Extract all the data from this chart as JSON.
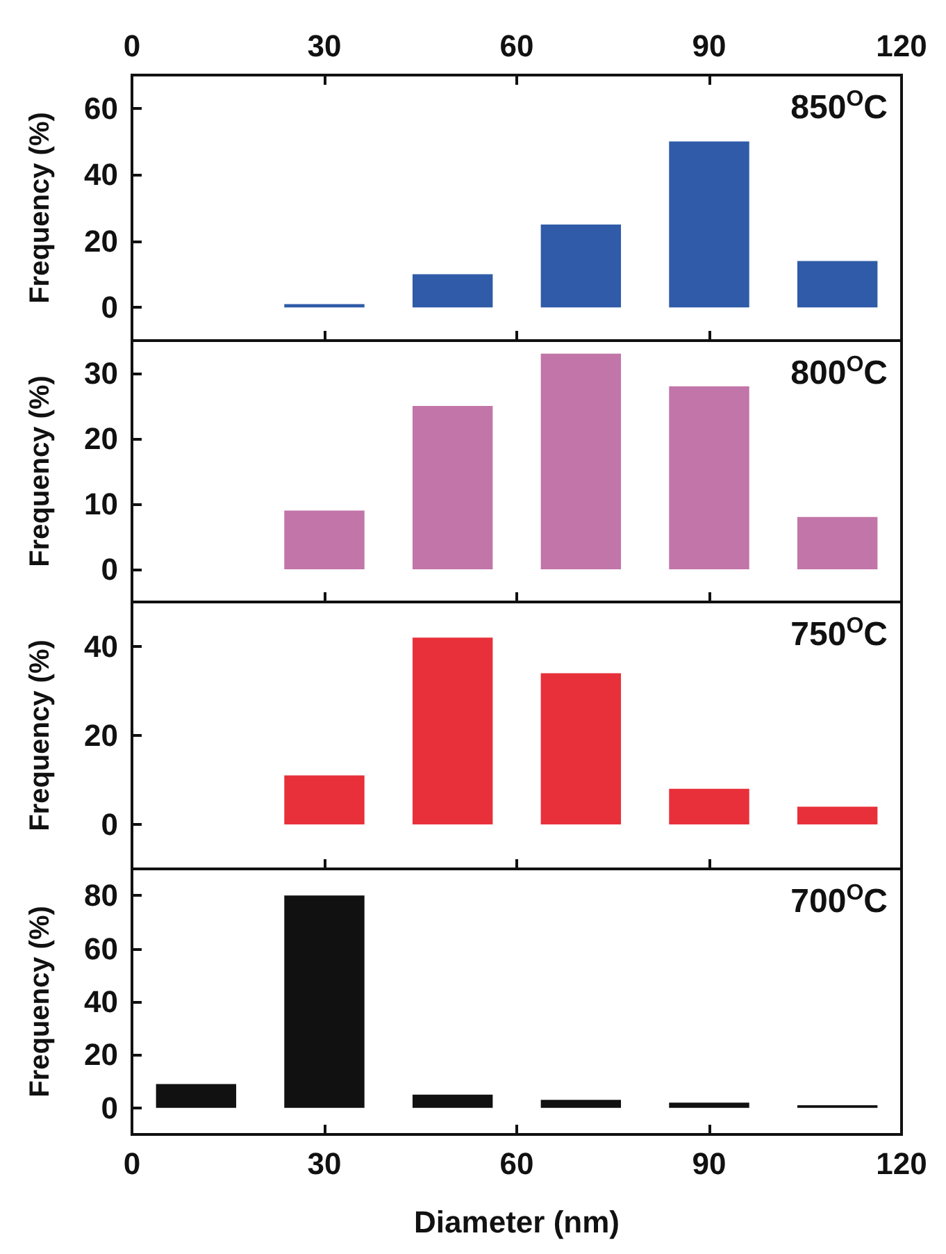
{
  "chart_data": [
    {
      "type": "bar",
      "x": [
        30,
        50,
        70,
        90,
        110
      ],
      "values": [
        1,
        10,
        25,
        50,
        14
      ],
      "color": "#2f5ba8",
      "xlim": [
        0,
        120
      ],
      "xticks": [
        0,
        30,
        60,
        90,
        120
      ],
      "x2lim": [
        0,
        120
      ],
      "x2ticks": [
        0,
        30,
        60,
        90,
        120
      ],
      "ylim": [
        -10,
        70
      ],
      "yticks": [
        0,
        20,
        40,
        60
      ],
      "ylabel": "Frequency (%)",
      "annotations": [
        "850$^{O}$C"
      ],
      "tick_labels": "y"
    },
    {
      "type": "bar",
      "x": [
        30,
        50,
        70,
        90,
        110
      ],
      "values": [
        9,
        25,
        33,
        28,
        8
      ],
      "color": "#c275a8",
      "xlim": [
        0,
        120
      ],
      "xticks": [
        0,
        30,
        60,
        90,
        120
      ],
      "ylim": [
        -5,
        35
      ],
      "yticks": [
        0,
        10,
        20,
        30
      ],
      "ylabel": "Frequency (%)",
      "annotations": [
        "800$^{O}$C"
      ],
      "tick_labels": "y"
    },
    {
      "type": "bar",
      "x": [
        30,
        50,
        70,
        90,
        110
      ],
      "values": [
        11,
        42,
        34,
        8,
        4
      ],
      "color": "#e8303a",
      "xlim": [
        0,
        120
      ],
      "xticks": [
        0,
        30,
        60,
        90,
        120
      ],
      "ylim": [
        -10,
        50
      ],
      "yticks": [
        0,
        20,
        40
      ],
      "ylabel": "Frequency (%)",
      "annotations": [
        "750$^{O}$C"
      ],
      "tick_labels": "y"
    },
    {
      "type": "bar",
      "x": [
        10,
        30,
        50,
        70,
        90,
        110
      ],
      "values": [
        9,
        80,
        5,
        3,
        2,
        1
      ],
      "color": "#111111",
      "xlim": [
        0,
        120
      ],
      "xticks": [
        0,
        30,
        60,
        90,
        120
      ],
      "ylim": [
        -10,
        90
      ],
      "yticks": [
        0,
        20,
        40,
        60,
        80
      ],
      "ylabel": "Frequency (%)",
      "xlabel": "Diameter (nm)",
      "annotations": [
        "700$^{O}$C"
      ]
    }
  ]
}
